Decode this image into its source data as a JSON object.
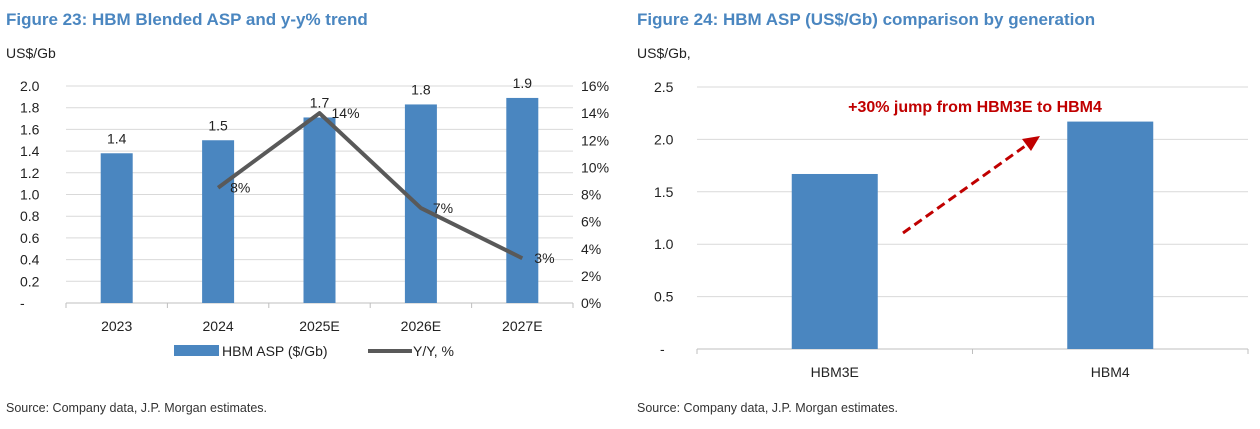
{
  "colors": {
    "title": "#4a86c0",
    "bar": "#4a86c0",
    "line": "#595959",
    "annotation": "#c00000",
    "grid": "#d9d9d9"
  },
  "chart_data": [
    {
      "type": "bar+line",
      "title": "Figure 23: HBM Blended ASP and y-y% trend",
      "ylabel": "US$/Gb",
      "categories": [
        "2023",
        "2024",
        "2025E",
        "2026E",
        "2027E"
      ],
      "ylim": [
        0,
        2.0
      ],
      "y_ticks": [
        "-",
        "0.2",
        "0.4",
        "0.6",
        "0.8",
        "1.0",
        "1.2",
        "1.4",
        "1.6",
        "1.8",
        "2.0"
      ],
      "y2lim": [
        0,
        16
      ],
      "y2_ticks": [
        "0%",
        "2%",
        "4%",
        "6%",
        "8%",
        "10%",
        "12%",
        "14%",
        "16%"
      ],
      "grid": true,
      "legend_position": "bottom",
      "series": [
        {
          "name": "HBM ASP ($/Gb)",
          "type": "bar",
          "axis": "left",
          "values": [
            1.38,
            1.5,
            1.71,
            1.83,
            1.89
          ],
          "labels": [
            "1.4",
            "1.5",
            "1.7",
            "1.8",
            "1.9"
          ]
        },
        {
          "name": "Y/Y, %",
          "type": "line",
          "axis": "right",
          "values": [
            null,
            8.5,
            14,
            7,
            3.3
          ],
          "labels": [
            "",
            "8%",
            "14%",
            "7%",
            "3%"
          ]
        }
      ],
      "source": "Source: Company data, J.P. Morgan estimates."
    },
    {
      "type": "bar",
      "title": "Figure 24: HBM ASP (US$/Gb) comparison by generation",
      "ylabel": "US$/Gb,",
      "categories": [
        "HBM3E",
        "HBM4"
      ],
      "values": [
        1.67,
        2.17
      ],
      "ylim": [
        0,
        2.5
      ],
      "y_ticks": [
        "-",
        "0.5",
        "1.0",
        "1.5",
        "2.0",
        "2.5"
      ],
      "grid": true,
      "annotation": "+30% jump from HBM3E to HBM4",
      "source": "Source: Company data, J.P. Morgan estimates."
    }
  ]
}
